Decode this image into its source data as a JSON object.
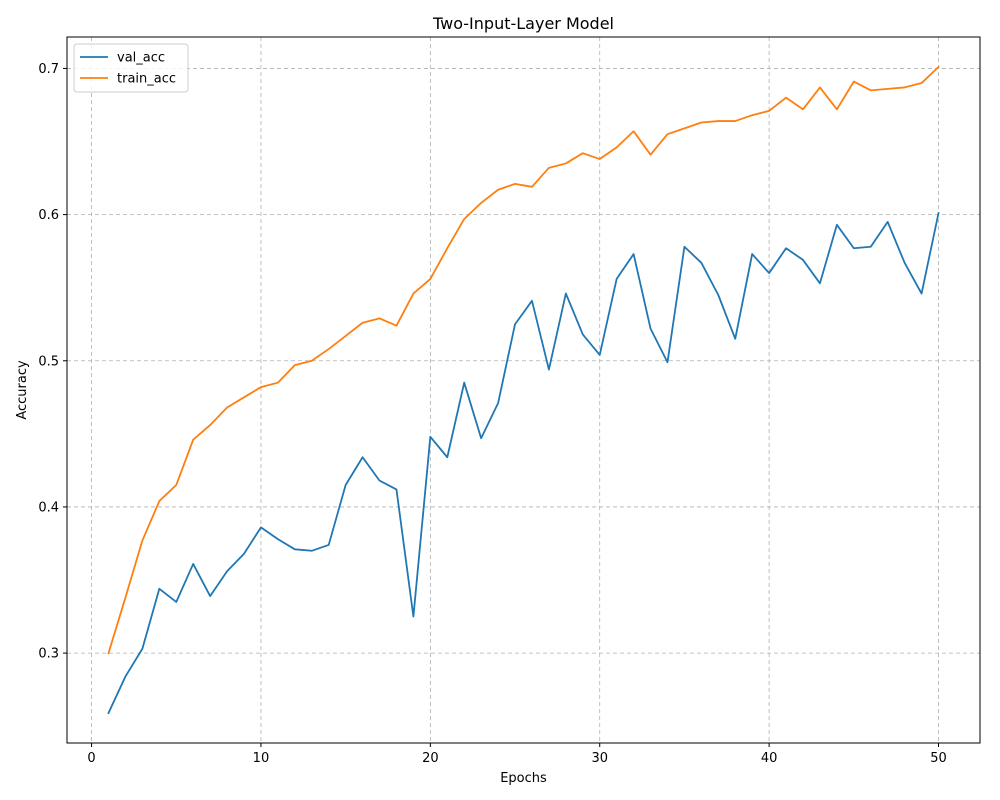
{
  "chart_data": {
    "type": "line",
    "title": "Two-Input-Layer Model",
    "xlabel": "Epochs",
    "ylabel": "Accuracy",
    "xlim": [
      -1.45,
      52.45
    ],
    "ylim": [
      0.2385,
      0.7215
    ],
    "xticks": [
      0,
      10,
      20,
      30,
      40,
      50
    ],
    "yticks": [
      0.3,
      0.4,
      0.5,
      0.6,
      0.7
    ],
    "xtick_labels": [
      "0",
      "10",
      "20",
      "30",
      "40",
      "50"
    ],
    "ytick_labels": [
      "0.3",
      "0.4",
      "0.5",
      "0.6",
      "0.7"
    ],
    "grid": true,
    "legend_position": "top-left",
    "x": [
      1,
      2,
      3,
      4,
      5,
      6,
      7,
      8,
      9,
      10,
      11,
      12,
      13,
      14,
      15,
      16,
      17,
      18,
      19,
      20,
      21,
      22,
      23,
      24,
      25,
      26,
      27,
      28,
      29,
      30,
      31,
      32,
      33,
      34,
      35,
      36,
      37,
      38,
      39,
      40,
      41,
      42,
      43,
      44,
      45,
      46,
      47,
      48,
      49,
      50
    ],
    "series": [
      {
        "name": "val_acc",
        "color": "#1f77b4",
        "values": [
          0.259,
          0.284,
          0.303,
          0.344,
          0.335,
          0.361,
          0.339,
          0.356,
          0.368,
          0.386,
          0.378,
          0.371,
          0.37,
          0.374,
          0.415,
          0.434,
          0.418,
          0.412,
          0.325,
          0.448,
          0.434,
          0.485,
          0.447,
          0.471,
          0.525,
          0.541,
          0.494,
          0.546,
          0.518,
          0.504,
          0.556,
          0.573,
          0.522,
          0.499,
          0.578,
          0.567,
          0.545,
          0.515,
          0.573,
          0.56,
          0.577,
          0.569,
          0.553,
          0.593,
          0.577,
          0.578,
          0.595,
          0.567,
          0.546,
          0.601
        ]
      },
      {
        "name": "train_acc",
        "color": "#ff7f0e",
        "values": [
          0.3,
          0.338,
          0.377,
          0.404,
          0.415,
          0.446,
          0.456,
          0.468,
          0.475,
          0.482,
          0.485,
          0.497,
          0.5,
          0.508,
          0.517,
          0.526,
          0.529,
          0.524,
          0.546,
          0.556,
          0.577,
          0.597,
          0.608,
          0.617,
          0.621,
          0.619,
          0.632,
          0.635,
          0.642,
          0.638,
          0.646,
          0.657,
          0.641,
          0.655,
          0.659,
          0.663,
          0.664,
          0.664,
          0.668,
          0.671,
          0.68,
          0.672,
          0.687,
          0.672,
          0.691,
          0.685,
          0.686,
          0.687,
          0.69,
          0.701
        ]
      }
    ]
  }
}
